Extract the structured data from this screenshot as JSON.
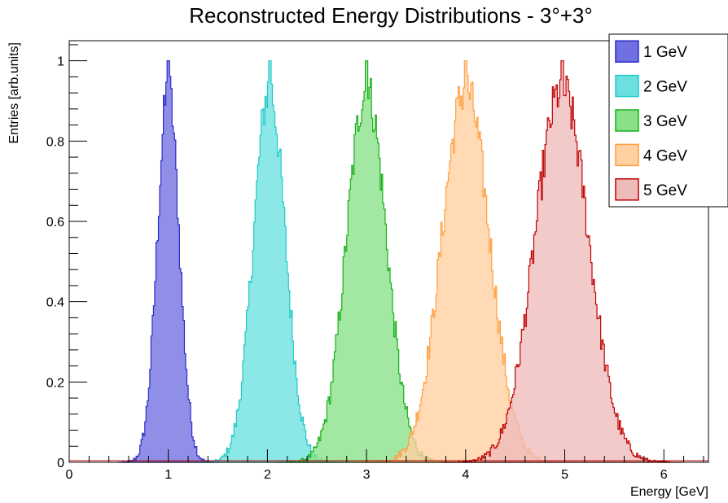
{
  "chart_data": {
    "type": "area",
    "title": "Reconstructed Energy Distributions - 3°+3°",
    "xlabel": "Energy [GeV]",
    "ylabel": "Entries [arb.units]",
    "xlim": [
      0,
      6.45
    ],
    "ylim": [
      0,
      1.05
    ],
    "xticks": [
      0,
      1,
      2,
      3,
      4,
      5,
      6
    ],
    "xtick_labels": [
      "0",
      "1",
      "2",
      "3",
      "4",
      "5",
      "6"
    ],
    "yticks": [
      0,
      0.2,
      0.4,
      0.6,
      0.8,
      1
    ],
    "ytick_labels": [
      "0",
      "0.2",
      "0.4",
      "0.6",
      "0.8",
      "1"
    ],
    "grid": false,
    "legend_position": "top-right",
    "series": [
      {
        "name": "1 GeV",
        "mean": 1.0,
        "sigma": 0.11,
        "peak": 1.0,
        "color": "#2b2bcc",
        "fill": "#7070e0"
      },
      {
        "name": "2 GeV",
        "mean": 2.02,
        "sigma": 0.16,
        "peak": 1.0,
        "color": "#22c8c8",
        "fill": "#6ce0e0"
      },
      {
        "name": "3 GeV",
        "mean": 3.0,
        "sigma": 0.2,
        "peak": 1.0,
        "color": "#18b018",
        "fill": "#88e088"
      },
      {
        "name": "4 GeV",
        "mean": 4.0,
        "sigma": 0.24,
        "peak": 1.0,
        "color": "#ff9f40",
        "fill": "#ffd0a0"
      },
      {
        "name": "5 GeV",
        "mean": 4.97,
        "sigma": 0.27,
        "peak": 1.0,
        "color": "#c00000",
        "fill": "#eebbbb"
      }
    ]
  }
}
